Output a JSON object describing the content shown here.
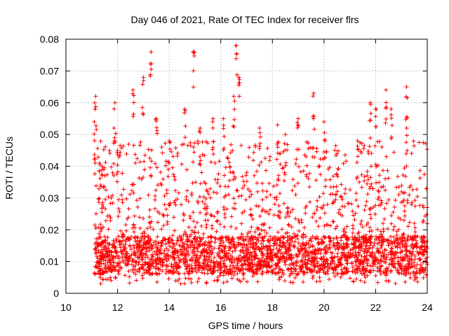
{
  "chart_data": {
    "type": "scatter",
    "title": "Day 046 of 2021, Rate Of TEC Index for receiver flrs",
    "xlabel": "GPS time / hours",
    "ylabel": "ROTI / TECUs",
    "xlim": [
      10,
      24
    ],
    "ylim": [
      0,
      0.08
    ],
    "x_ticks": [
      10,
      12,
      14,
      16,
      18,
      20,
      22,
      24
    ],
    "x_tick_labels": [
      "10",
      "12",
      "14",
      "16",
      "18",
      "20",
      "22",
      "24"
    ],
    "y_ticks": [
      0,
      0.01,
      0.02,
      0.03,
      0.04,
      0.05,
      0.06,
      0.07,
      0.08
    ],
    "y_tick_labels": [
      "0",
      "0.01",
      "0.02",
      "0.03",
      "0.04",
      "0.05",
      "0.06",
      "0.07",
      "0.08"
    ],
    "grid": true,
    "marker": "+",
    "color": "#ff0000",
    "series": [
      {
        "name": "ROTI",
        "x_start": 11.1,
        "x_end": 24.0,
        "typical_range": [
          0.003,
          0.03
        ],
        "sample_points": [
          [
            11.1,
            0.054
          ],
          [
            11.15,
            0.062
          ],
          [
            11.3,
            0.041
          ],
          [
            11.35,
            0.003
          ],
          [
            11.9,
            0.06
          ],
          [
            12.0,
            0.045
          ],
          [
            12.6,
            0.064
          ],
          [
            13.0,
            0.068
          ],
          [
            13.3,
            0.076
          ],
          [
            13.5,
            0.055
          ],
          [
            14.0,
            0.048
          ],
          [
            14.6,
            0.058
          ],
          [
            14.95,
            0.076
          ],
          [
            15.2,
            0.052
          ],
          [
            15.7,
            0.055
          ],
          [
            16.1,
            0.055
          ],
          [
            16.5,
            0.062
          ],
          [
            16.6,
            0.078
          ],
          [
            16.7,
            0.068
          ],
          [
            17.5,
            0.052
          ],
          [
            18.2,
            0.053
          ],
          [
            18.5,
            0.05
          ],
          [
            19.0,
            0.055
          ],
          [
            19.6,
            0.063
          ],
          [
            20.0,
            0.054
          ],
          [
            20.5,
            0.044
          ],
          [
            21.3,
            0.048
          ],
          [
            21.8,
            0.06
          ],
          [
            22.0,
            0.058
          ],
          [
            22.4,
            0.064
          ],
          [
            22.6,
            0.058
          ],
          [
            23.2,
            0.065
          ],
          [
            23.2,
            0.052
          ],
          [
            24.0,
            0.027
          ]
        ]
      }
    ]
  }
}
